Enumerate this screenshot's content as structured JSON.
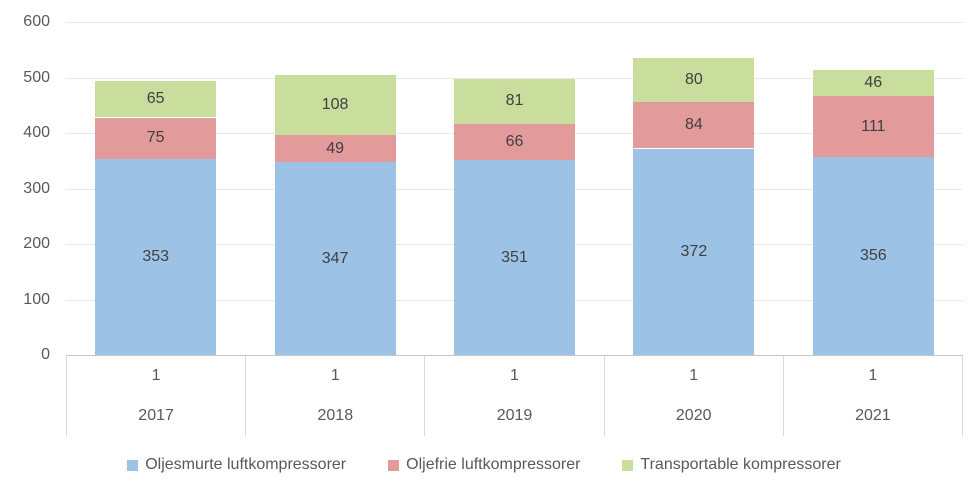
{
  "chart_data": {
    "type": "bar",
    "stacked": true,
    "title": "",
    "xlabel": "",
    "ylabel": "",
    "categories": [
      "2017",
      "2018",
      "2019",
      "2020",
      "2021"
    ],
    "category_sub_labels": [
      "1",
      "1",
      "1",
      "1",
      "1"
    ],
    "series": [
      {
        "name": "Oljesmurte luftkompressorer",
        "color": "#9cc2e5",
        "values": [
          353,
          347,
          351,
          372,
          356
        ]
      },
      {
        "name": "Oljefrie luftkompressorer",
        "color": "#e29a9b",
        "values": [
          75,
          49,
          66,
          84,
          111
        ]
      },
      {
        "name": "Transportable kompressorer",
        "color": "#c9dd9d",
        "values": [
          65,
          108,
          81,
          80,
          46
        ]
      }
    ],
    "ylim": [
      0,
      600
    ],
    "ytick_step": 100,
    "ytick_labels": [
      "0",
      "100",
      "200",
      "300",
      "400",
      "500",
      "600"
    ],
    "grid": true,
    "legend_position": "bottom",
    "data_labels_visible": true
  },
  "colors": {
    "gridline": "#e8e8e8",
    "axis_line": "#c6c6c6",
    "table_border": "#d9d9d9",
    "tick_text": "#595959",
    "data_label_text": "#404040",
    "background": "#ffffff"
  }
}
